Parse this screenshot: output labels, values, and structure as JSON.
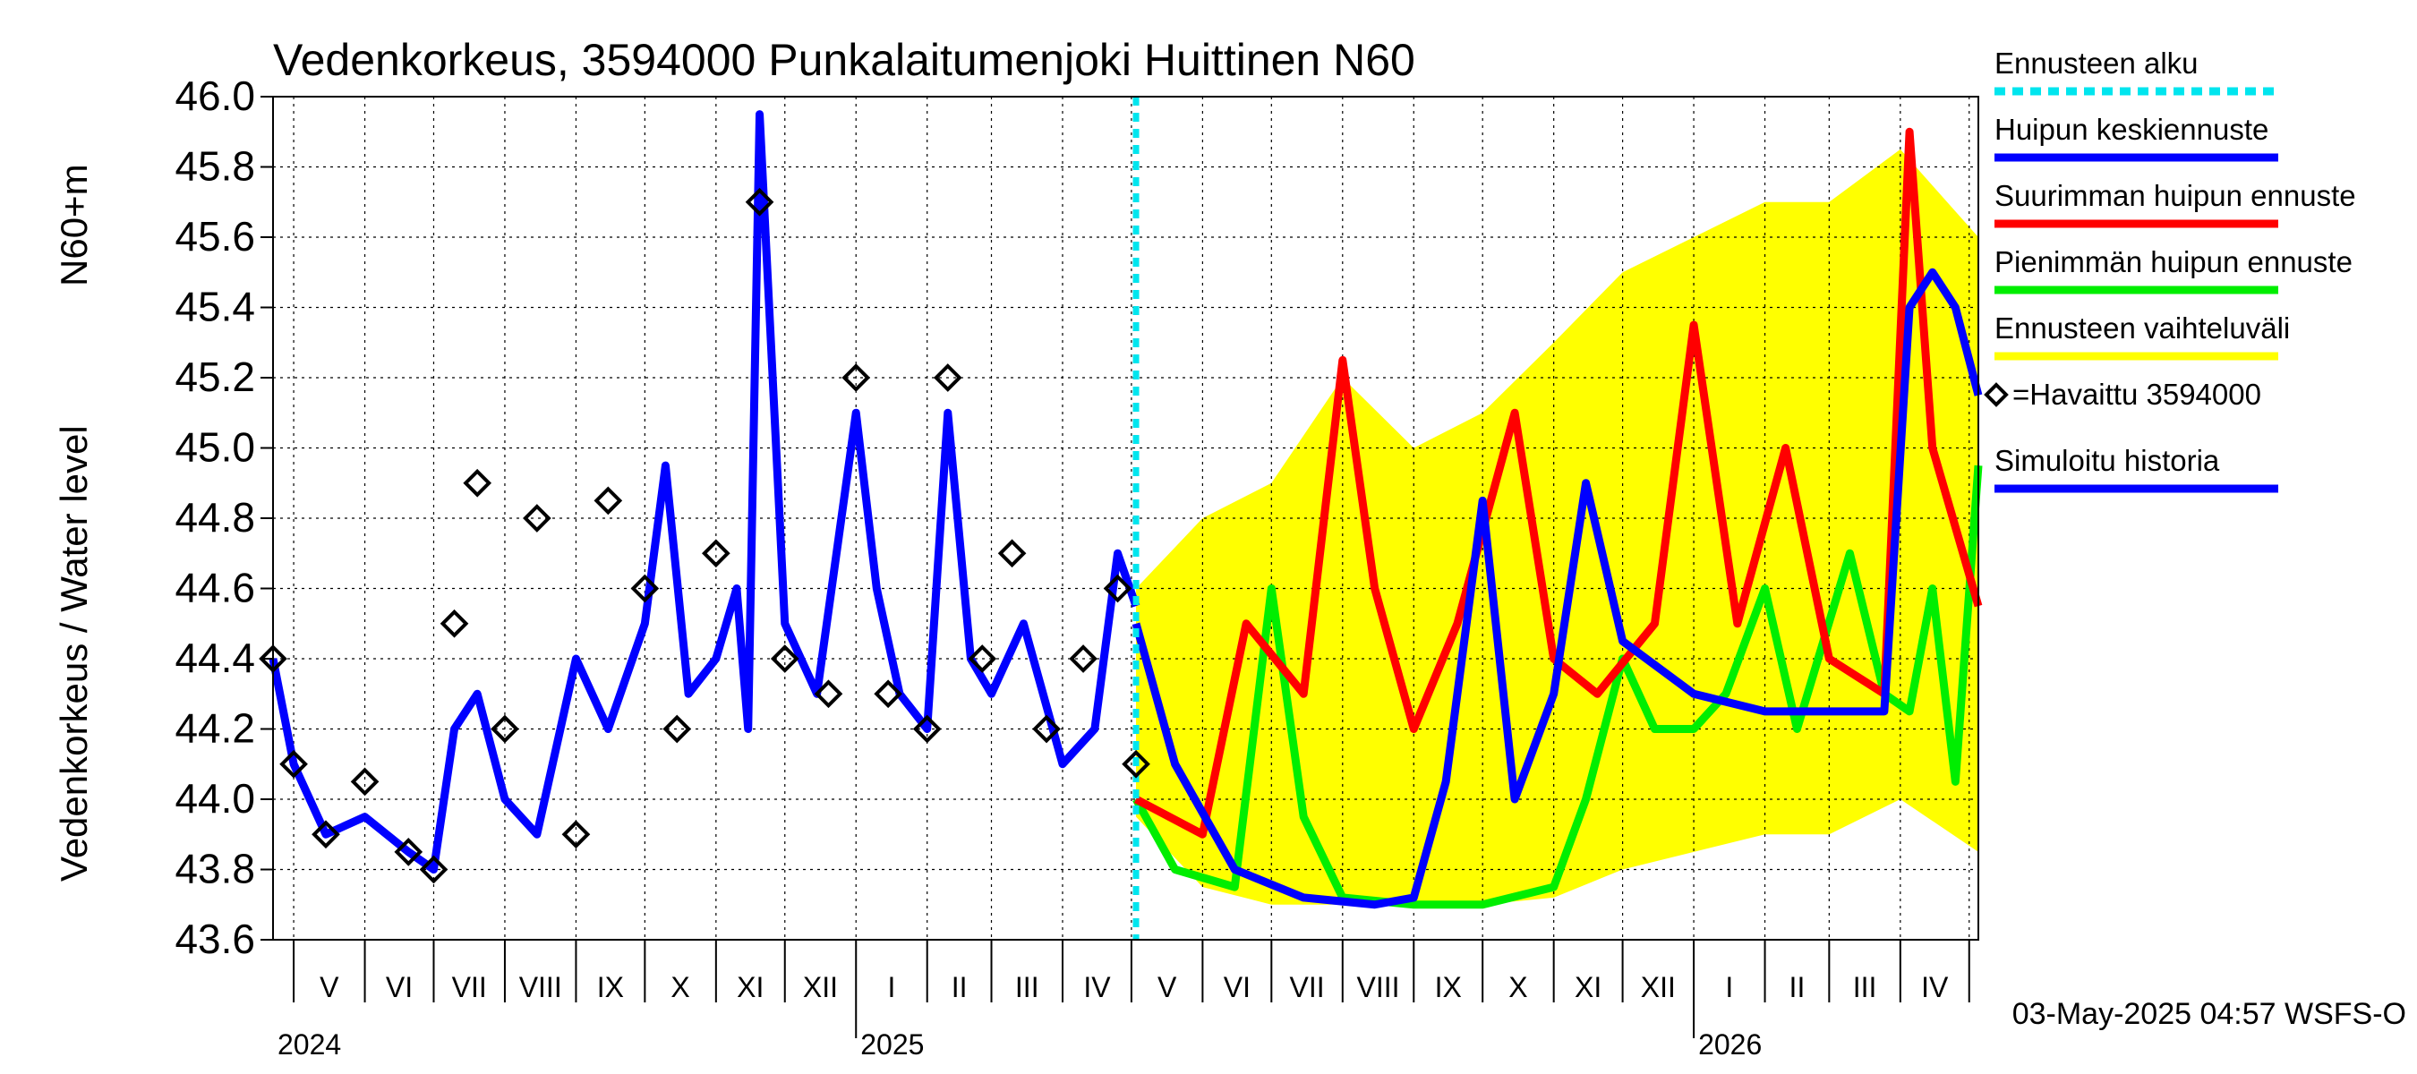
{
  "chart_data": {
    "type": "line",
    "title": "Vedenkorkeus, 3594000 Punkalaitumenjoki Huittinen N60",
    "ylabel": "Vedenkorkeus / Water level",
    "ylabel_unit": "N60+m",
    "ylim": [
      43.6,
      46.0
    ],
    "yticks": [
      "43.6",
      "43.8",
      "44.0",
      "44.2",
      "44.4",
      "44.6",
      "44.8",
      "45.0",
      "45.2",
      "45.4",
      "45.6",
      "45.8",
      "46.0"
    ],
    "x_axis": {
      "start": "2024-04-22",
      "end": "2026-05-05",
      "months": [
        "V",
        "VI",
        "VII",
        "VIII",
        "IX",
        "X",
        "XI",
        "XII",
        "I",
        "II",
        "III",
        "IV",
        "V",
        "VI",
        "VII",
        "VIII",
        "IX",
        "X",
        "XI",
        "XII",
        "I",
        "II",
        "III",
        "IV"
      ],
      "years": [
        "2024",
        "2025",
        "2026"
      ]
    },
    "forecast_start": "2025-05-03",
    "timestamp": "03-May-2025 04:57 WSFS-O",
    "legend": [
      {
        "label": "Ennusteen alku",
        "color": "#00e5ee",
        "style": "dashed"
      },
      {
        "label": "Huipun keskiennuste",
        "color": "#0000ff",
        "style": "solid"
      },
      {
        "label": "Suurimman huipun ennuste",
        "color": "#ff0000",
        "style": "solid"
      },
      {
        "label": "Pienimmän huipun ennuste",
        "color": "#00ee00",
        "style": "solid"
      },
      {
        "label": "Ennusteen vaihteluväli",
        "color": "#ffff00",
        "style": "solid"
      },
      {
        "label": "=Havaittu 3594000",
        "color": "#000000",
        "style": "marker"
      },
      {
        "label": "Simuloitu historia",
        "color": "#0000ff",
        "style": "solid"
      }
    ],
    "series": [
      {
        "name": "Simuloitu historia",
        "color": "#0000ff",
        "x": [
          "2024-04-22",
          "2024-05-01",
          "2024-05-15",
          "2024-06-01",
          "2024-06-20",
          "2024-07-01",
          "2024-07-10",
          "2024-07-20",
          "2024-08-01",
          "2024-08-15",
          "2024-09-01",
          "2024-09-15",
          "2024-10-01",
          "2024-10-10",
          "2024-10-20",
          "2024-11-01",
          "2024-11-10",
          "2024-11-15",
          "2024-11-20",
          "2024-12-01",
          "2024-12-15",
          "2025-01-01",
          "2025-01-10",
          "2025-01-20",
          "2025-02-01",
          "2025-02-10",
          "2025-02-20",
          "2025-03-01",
          "2025-03-15",
          "2025-04-01",
          "2025-04-15",
          "2025-04-25",
          "2025-05-03"
        ],
        "values": [
          44.4,
          44.1,
          43.9,
          43.95,
          43.85,
          43.8,
          44.2,
          44.3,
          44.0,
          43.9,
          44.4,
          44.2,
          44.5,
          44.95,
          44.3,
          44.4,
          44.6,
          44.2,
          45.95,
          44.5,
          44.3,
          45.1,
          44.6,
          44.3,
          44.2,
          45.1,
          44.4,
          44.3,
          44.5,
          44.1,
          44.2,
          44.7,
          44.55
        ]
      },
      {
        "name": "Havaittu 3594000",
        "color": "#000000",
        "x": [
          "2024-04-22",
          "2024-05-01",
          "2024-05-15",
          "2024-06-01",
          "2024-06-20",
          "2024-07-01",
          "2024-07-10",
          "2024-07-20",
          "2024-08-01",
          "2024-08-15",
          "2024-09-01",
          "2024-09-15",
          "2024-10-01",
          "2024-10-15",
          "2024-11-01",
          "2024-11-20",
          "2024-12-01",
          "2024-12-20",
          "2025-01-01",
          "2025-01-15",
          "2025-02-01",
          "2025-02-10",
          "2025-02-25",
          "2025-03-10",
          "2025-03-25",
          "2025-04-10",
          "2025-04-25",
          "2025-05-03"
        ],
        "values": [
          44.4,
          44.1,
          43.9,
          44.05,
          43.85,
          43.8,
          44.5,
          44.9,
          44.2,
          44.8,
          43.9,
          44.85,
          44.6,
          44.2,
          44.7,
          45.7,
          44.4,
          44.3,
          45.2,
          44.3,
          44.2,
          45.2,
          44.4,
          44.7,
          44.2,
          44.4,
          44.6,
          44.1
        ]
      },
      {
        "name": "Huipun keskiennuste",
        "color": "#0000ff",
        "x": [
          "2025-05-03",
          "2025-05-20",
          "2025-06-15",
          "2025-07-15",
          "2025-08-15",
          "2025-09-01",
          "2025-09-15",
          "2025-10-01",
          "2025-10-15",
          "2025-11-01",
          "2025-11-15",
          "2025-12-01",
          "2026-01-01",
          "2026-02-01",
          "2026-03-01",
          "2026-03-25",
          "2026-04-05",
          "2026-04-15",
          "2026-04-25",
          "2026-05-05"
        ],
        "values": [
          44.5,
          44.1,
          43.8,
          43.72,
          43.7,
          43.72,
          44.05,
          44.85,
          44.0,
          44.3,
          44.9,
          44.45,
          44.3,
          44.25,
          44.25,
          44.25,
          45.4,
          45.5,
          45.4,
          45.15
        ]
      },
      {
        "name": "Suurimman huipun ennuste",
        "color": "#ff0000",
        "x": [
          "2025-05-03",
          "2025-06-01",
          "2025-06-20",
          "2025-07-15",
          "2025-08-01",
          "2025-08-15",
          "2025-09-01",
          "2025-09-20",
          "2025-10-15",
          "2025-11-01",
          "2025-11-20",
          "2025-12-15",
          "2026-01-01",
          "2026-01-20",
          "2026-02-10",
          "2026-03-01",
          "2026-03-25",
          "2026-04-05",
          "2026-04-15",
          "2026-05-05"
        ],
        "values": [
          44.0,
          43.9,
          44.5,
          44.3,
          45.25,
          44.6,
          44.2,
          44.5,
          45.1,
          44.4,
          44.3,
          44.5,
          45.35,
          44.5,
          45.0,
          44.4,
          44.3,
          45.9,
          45.0,
          44.55
        ]
      },
      {
        "name": "Pienimmän huipun ennuste",
        "color": "#00ee00",
        "x": [
          "2025-05-03",
          "2025-05-20",
          "2025-06-15",
          "2025-07-01",
          "2025-07-15",
          "2025-08-01",
          "2025-09-01",
          "2025-10-01",
          "2025-11-01",
          "2025-11-15",
          "2025-12-01",
          "2025-12-15",
          "2026-01-01",
          "2026-01-15",
          "2026-02-01",
          "2026-02-15",
          "2026-03-10",
          "2026-03-25",
          "2026-04-05",
          "2026-04-15",
          "2026-04-25",
          "2026-05-05"
        ],
        "values": [
          44.0,
          43.8,
          43.75,
          44.6,
          43.95,
          43.72,
          43.7,
          43.7,
          43.75,
          44.0,
          44.4,
          44.2,
          44.2,
          44.3,
          44.6,
          44.2,
          44.7,
          44.3,
          44.25,
          44.6,
          44.05,
          44.95
        ]
      },
      {
        "name": "Ennusteen vaihteluväli",
        "color": "#ffff00",
        "type": "area",
        "x": [
          "2025-05-03",
          "2025-06-01",
          "2025-07-01",
          "2025-08-01",
          "2025-09-01",
          "2025-10-01",
          "2025-11-01",
          "2025-12-01",
          "2026-01-01",
          "2026-02-01",
          "2026-03-01",
          "2026-04-01",
          "2026-05-05"
        ],
        "upper": [
          44.6,
          44.8,
          44.9,
          45.2,
          45.0,
          45.1,
          45.3,
          45.5,
          45.6,
          45.7,
          45.7,
          45.85,
          45.6
        ],
        "lower": [
          43.95,
          43.75,
          43.7,
          43.7,
          43.7,
          43.7,
          43.72,
          43.8,
          43.85,
          43.9,
          43.9,
          44.0,
          43.85
        ]
      }
    ]
  }
}
